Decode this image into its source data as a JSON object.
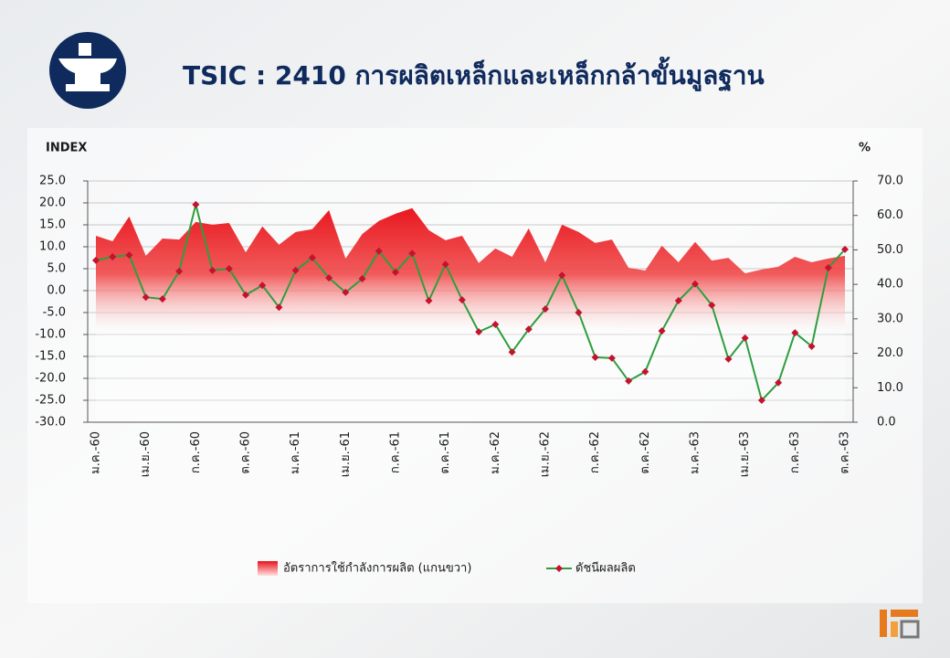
{
  "chart_data": {
    "type": "area_line",
    "title": "TSIC : 2410 การผลิตเหล็กและเหล็กกล้าขั้นมูลฐาน",
    "y_label": "INDEX",
    "y2_label": "%",
    "categories": [
      "ม.ค.-60",
      null,
      null,
      "เม.ย.-60",
      null,
      null,
      "ก.ค.-60",
      null,
      null,
      "ต.ค.-60",
      null,
      null,
      "ม.ค.-61",
      null,
      null,
      "เม.ย.-61",
      null,
      null,
      "ก.ค.-61",
      null,
      null,
      "ต.ค.-61",
      null,
      null,
      "ม.ค.-62",
      null,
      null,
      "เม.ย.-62",
      null,
      null,
      "ก.ค.-62",
      null,
      null,
      "ต.ค.-62",
      null,
      null,
      "ม.ค.-63",
      null,
      null,
      "เม.ย.-63",
      null,
      null,
      "ก.ค.-63",
      null,
      null,
      "ต.ค.-63"
    ],
    "series": [
      {
        "name": "อัตราการใช้กำลังการผลิต (แกนขวา)",
        "type": "area",
        "axis": "y2",
        "color": "#e8141c",
        "values": [
          54.1,
          52.5,
          59.7,
          48.3,
          53.3,
          53.0,
          58.1,
          57.3,
          57.8,
          49.3,
          56.8,
          51.5,
          55.2,
          56.0,
          61.5,
          47.5,
          54.6,
          58.4,
          60.5,
          62.1,
          55.7,
          52.8,
          54.1,
          46.2,
          50.4,
          48.0,
          56.2,
          46.4,
          57.3,
          55.2,
          52.0,
          53.0,
          44.8,
          44.0,
          51.2,
          46.4,
          52.3,
          46.9,
          47.7,
          43.2,
          44.3,
          45.1,
          48.0,
          46.4,
          47.5,
          48.3
        ]
      },
      {
        "name": "ดัชนีผลผลิต",
        "type": "line",
        "axis": "y",
        "color": "#2e9e3e",
        "marker_color": "#c4122f",
        "values": [
          6.9,
          7.7,
          8.1,
          -1.5,
          -1.9,
          4.4,
          19.6,
          4.6,
          5.0,
          -1.0,
          1.2,
          -3.8,
          4.6,
          7.5,
          2.9,
          -0.4,
          2.7,
          9.0,
          4.2,
          8.5,
          -2.3,
          6.0,
          -2.1,
          -9.4,
          -7.7,
          -14.0,
          -8.8,
          -4.2,
          3.5,
          -5.0,
          -15.2,
          -15.4,
          -20.6,
          -18.5,
          -9.2,
          -2.3,
          1.5,
          -3.3,
          -15.6,
          -10.8,
          -25.0,
          -21.0,
          -9.6,
          -12.7,
          5.2,
          9.4
        ]
      }
    ],
    "ylim": [
      -30,
      25
    ],
    "yticks": [
      {
        "value": -30,
        "label": "-30.0"
      },
      {
        "value": -25,
        "label": "-25.0"
      },
      {
        "value": -20,
        "label": "-20.0"
      },
      {
        "value": -15,
        "label": "-15.0"
      },
      {
        "value": -10,
        "label": "-10.0"
      },
      {
        "value": -5,
        "label": "-5.0"
      },
      {
        "value": 0,
        "label": "0.0"
      },
      {
        "value": 5,
        "label": "5.0"
      },
      {
        "value": 10,
        "label": "10.0"
      },
      {
        "value": 15,
        "label": "15.0"
      },
      {
        "value": 20,
        "label": "20.0"
      },
      {
        "value": 25,
        "label": "25.0"
      }
    ],
    "y2lim": [
      0,
      70
    ],
    "y2ticks": [
      {
        "value": 0,
        "label": "0.0"
      },
      {
        "value": 10,
        "label": "10.0"
      },
      {
        "value": 20,
        "label": "20.0"
      },
      {
        "value": 30,
        "label": "30.0"
      },
      {
        "value": 40,
        "label": "40.0"
      },
      {
        "value": 50,
        "label": "50.0"
      },
      {
        "value": 60,
        "label": "60.0"
      },
      {
        "value": 70,
        "label": "70.0"
      }
    ],
    "grid": true,
    "legend": "bottom"
  }
}
